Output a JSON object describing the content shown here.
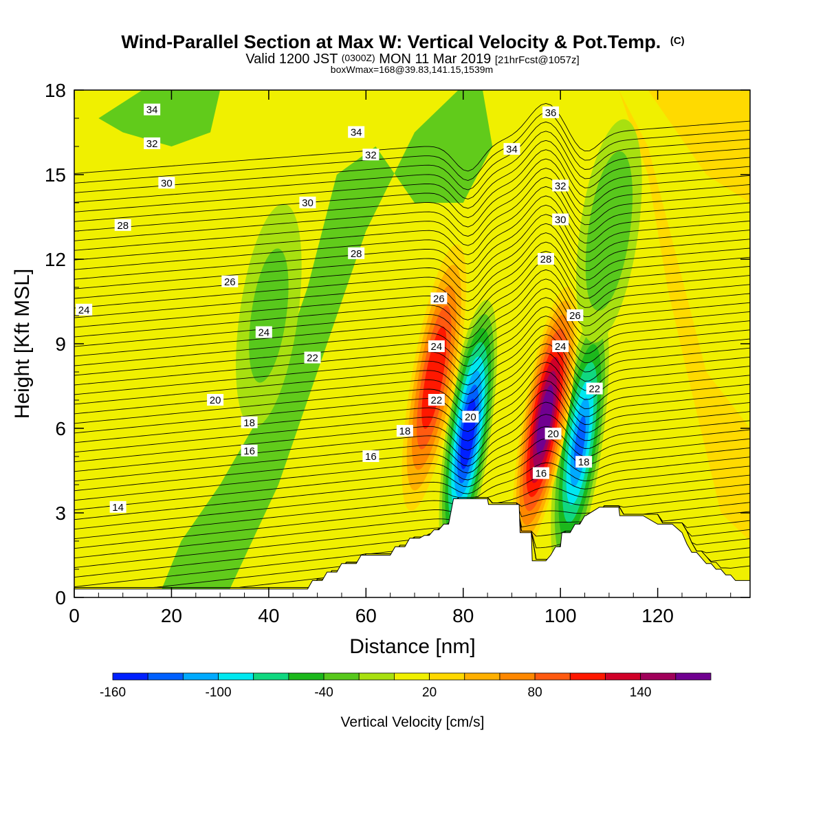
{
  "chart_data": {
    "type": "heatmap",
    "title": "Wind-Parallel Section at Max W: Vertical Velocity & Pot.Temp.",
    "title_mark": "(C)",
    "subtitle_parts": [
      "Valid 1200 JST",
      "(0300Z)",
      "MON 11 Mar 2019",
      "[21hrFcst@1057z]"
    ],
    "subtitle2": "boxWmax=168@39.83,141.15,1539m",
    "xlabel": "Distance [nm]",
    "ylabel": "Height [Kft MSL]",
    "xlim": [
      0,
      139
    ],
    "ylim": [
      0,
      18
    ],
    "x_ticks": [
      0,
      20,
      40,
      60,
      80,
      100,
      120
    ],
    "y_ticks": [
      0,
      3,
      6,
      9,
      12,
      15,
      18
    ],
    "x_tick_labels": [
      "0",
      "20",
      "40",
      "60",
      "80",
      "100",
      "120"
    ],
    "y_tick_labels": [
      "0",
      "3",
      "6",
      "9",
      "12",
      "15",
      "18"
    ],
    "grid": false,
    "colorbar": {
      "label": "Vertical Velocity [cm/s]",
      "levels": [
        -160,
        -140,
        -120,
        -100,
        -80,
        -60,
        -40,
        -20,
        0,
        20,
        40,
        60,
        80,
        100,
        120,
        140,
        160,
        180
      ],
      "tick_labels": [
        "-160",
        "-100",
        "-40",
        "20",
        "80",
        "140"
      ],
      "tick_values": [
        -160,
        -100,
        -40,
        20,
        80,
        140
      ],
      "colors": [
        "#0020ff",
        "#0060ff",
        "#00aaff",
        "#00e8f0",
        "#10d880",
        "#1cb81c",
        "#58c81c",
        "#a8e010",
        "#f0f000",
        "#ffd800",
        "#ffb000",
        "#ff8800",
        "#ff5a10",
        "#ff1800",
        "#d00028",
        "#a0005a",
        "#700090"
      ]
    },
    "vertical_velocity_max_cm_s": 168,
    "w_features": [
      {
        "x": 81,
        "z": 5.8,
        "w": -160
      },
      {
        "x": 104,
        "z": 5.5,
        "w": -130
      },
      {
        "x": 74,
        "z": 7.8,
        "w": 100
      },
      {
        "x": 96.8,
        "z": 6.3,
        "w": 168
      },
      {
        "x": 110,
        "z": 13,
        "w": -40
      },
      {
        "x": 40,
        "z": 10,
        "w": -25
      }
    ],
    "terrain": {
      "x": [
        0,
        48,
        49,
        51,
        52,
        54,
        55,
        58,
        59,
        65,
        66,
        68,
        69,
        71,
        72,
        73,
        74,
        75,
        76,
        77,
        78,
        78.2,
        85,
        85.2,
        91.5,
        91.7,
        94,
        94.2,
        97,
        98,
        99,
        100,
        100.3,
        102,
        103,
        104,
        105,
        105.2,
        108,
        108.2,
        112,
        112.2,
        117,
        120,
        123,
        125,
        126,
        127,
        128,
        129,
        130,
        131,
        132,
        133,
        134,
        135,
        136,
        137,
        139
      ],
      "z": [
        0.3,
        0.3,
        0.6,
        0.6,
        0.9,
        0.9,
        1.2,
        1.2,
        1.5,
        1.5,
        1.8,
        1.8,
        2.1,
        2.1,
        2.2,
        2.2,
        2.4,
        2.4,
        2.6,
        2.6,
        3.5,
        3.5,
        3.5,
        3.3,
        3.3,
        2.3,
        2.3,
        1.3,
        1.3,
        1.5,
        1.8,
        1.8,
        2.3,
        2.3,
        2.6,
        2.6,
        2.9,
        2.9,
        3.2,
        3.2,
        3.2,
        2.9,
        2.9,
        2.6,
        2.6,
        2.3,
        1.9,
        1.6,
        1.6,
        1.4,
        1.2,
        1.2,
        1.0,
        1.0,
        0.8,
        0.8,
        0.6,
        0.6,
        0.6
      ]
    },
    "theta_contours": [
      {
        "value": 14,
        "label_at": [
          9,
          3.2
        ]
      },
      {
        "value": 16,
        "label_at": [
          36,
          5.2
        ]
      },
      {
        "value": 18,
        "label_at": [
          36,
          6.2
        ]
      },
      {
        "value": 20,
        "label_at": [
          29,
          7.0
        ]
      },
      {
        "value": 22,
        "label_at": [
          49,
          8.5
        ]
      },
      {
        "value": 24,
        "label_at": [
          39,
          9.4
        ]
      },
      {
        "value": 26,
        "label_at": [
          32,
          11.2
        ]
      },
      {
        "value": 28,
        "label_at": [
          10,
          13.2
        ]
      },
      {
        "value": 30,
        "label_at": [
          19,
          14.7
        ]
      },
      {
        "value": 32,
        "label_at": [
          16,
          16.1
        ]
      },
      {
        "value": 34,
        "label_at": [
          16,
          17.3
        ]
      },
      {
        "value": 36,
        "label_at": [
          98,
          17.2
        ]
      },
      {
        "value": 24,
        "label_at": [
          2,
          10.2
        ]
      },
      {
        "value": 30,
        "label_at": [
          48,
          14.0
        ]
      },
      {
        "value": 34,
        "label_at": [
          58,
          16.5
        ]
      },
      {
        "value": 32,
        "label_at": [
          61,
          15.7
        ]
      },
      {
        "value": 28,
        "label_at": [
          58,
          12.2
        ]
      },
      {
        "value": 16,
        "label_at": [
          61,
          5.0
        ]
      },
      {
        "value": 18,
        "label_at": [
          68,
          5.9
        ]
      },
      {
        "value": 26,
        "label_at": [
          75,
          10.6
        ]
      },
      {
        "value": 24,
        "label_at": [
          74.5,
          8.9
        ]
      },
      {
        "value": 22,
        "label_at": [
          74.5,
          7.0
        ]
      },
      {
        "value": 20,
        "label_at": [
          81.5,
          6.4
        ]
      },
      {
        "value": 34,
        "label_at": [
          90,
          15.9
        ]
      },
      {
        "value": 32,
        "label_at": [
          100,
          14.6
        ]
      },
      {
        "value": 30,
        "label_at": [
          100,
          13.4
        ]
      },
      {
        "value": 28,
        "label_at": [
          97,
          12.0
        ]
      },
      {
        "value": 26,
        "label_at": [
          103,
          10.0
        ]
      },
      {
        "value": 24,
        "label_at": [
          100,
          8.9
        ]
      },
      {
        "value": 22,
        "label_at": [
          107,
          7.4
        ]
      },
      {
        "value": 20,
        "label_at": [
          98.5,
          5.8
        ]
      },
      {
        "value": 18,
        "label_at": [
          104.8,
          4.8
        ]
      },
      {
        "value": 16,
        "label_at": [
          96,
          4.4
        ]
      }
    ]
  }
}
